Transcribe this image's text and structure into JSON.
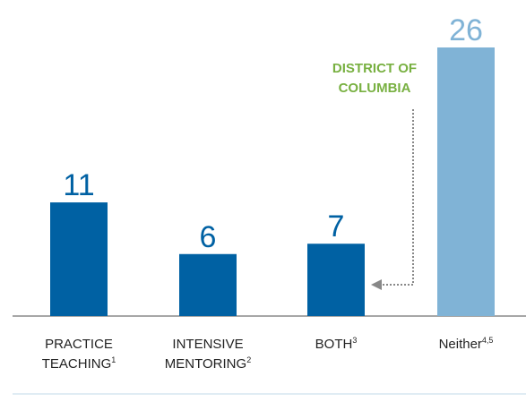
{
  "chart_data": {
    "type": "bar",
    "categories": [
      "PRACTICE TEACHING",
      "INTENSIVE MENTORING",
      "BOTH",
      "Neither"
    ],
    "footnote_refs": [
      "1",
      "2",
      "3",
      "4,5"
    ],
    "values": [
      11,
      6,
      7,
      26
    ],
    "colors": [
      "#0061a3",
      "#0061a3",
      "#0061a3",
      "#80b3d6"
    ],
    "annotation": "DISTRICT OF COLUMBIA",
    "annotation_color": "#78b041"
  }
}
